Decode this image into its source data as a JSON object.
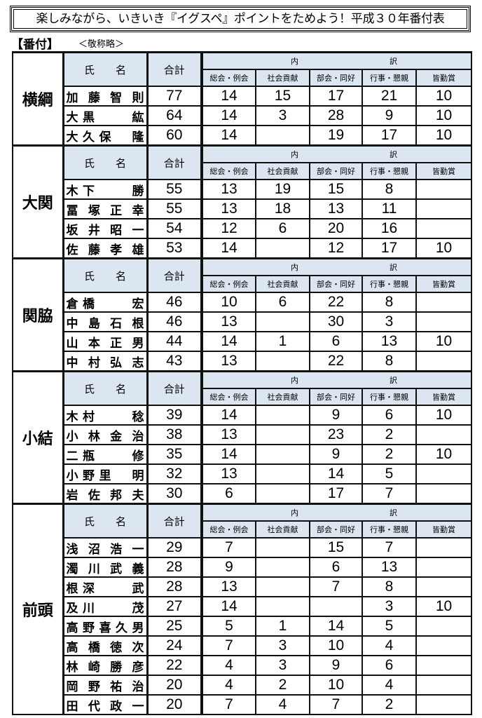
{
  "title": "楽しみながら、いきいき『イグスペ』ポイントをためよう！平成３０年番付表",
  "label": "【番付】",
  "note": "＜敬称略＞",
  "headers": {
    "name": "氏　　名",
    "total": "合計",
    "breakdown_left": "内",
    "breakdown_right": "訳",
    "columns": [
      "総会・例会",
      "社会貢献",
      "部会・同好",
      "行事・懇親",
      "皆勤賞"
    ]
  },
  "sections": [
    {
      "rank": "横綱",
      "rows": [
        {
          "name": "加藤智則",
          "total": "77",
          "values": [
            "14",
            "15",
            "17",
            "21",
            "10"
          ]
        },
        {
          "name": "大黒　　紘",
          "total": "64",
          "values": [
            "14",
            "3",
            "28",
            "9",
            "10"
          ]
        },
        {
          "name": "大久保　隆",
          "total": "60",
          "values": [
            "14",
            "",
            "19",
            "17",
            "10"
          ]
        }
      ]
    },
    {
      "rank": "大関",
      "rows": [
        {
          "name": "木下　　勝",
          "total": "55",
          "values": [
            "13",
            "19",
            "15",
            "8",
            ""
          ]
        },
        {
          "name": "冨塚正幸",
          "total": "55",
          "values": [
            "13",
            "18",
            "13",
            "11",
            ""
          ]
        },
        {
          "name": "坂井昭一",
          "total": "54",
          "values": [
            "12",
            "6",
            "20",
            "16",
            ""
          ]
        },
        {
          "name": "佐藤孝雄",
          "total": "53",
          "values": [
            "14",
            "",
            "12",
            "17",
            "10"
          ]
        }
      ]
    },
    {
      "rank": "関脇",
      "rows": [
        {
          "name": "倉橋　　宏",
          "total": "46",
          "values": [
            "10",
            "6",
            "22",
            "8",
            ""
          ]
        },
        {
          "name": "中島石根",
          "total": "46",
          "values": [
            "13",
            "",
            "30",
            "3",
            ""
          ]
        },
        {
          "name": "山本正男",
          "total": "44",
          "values": [
            "14",
            "1",
            "6",
            "13",
            "10"
          ]
        },
        {
          "name": "中村弘志",
          "total": "43",
          "values": [
            "13",
            "",
            "22",
            "8",
            ""
          ]
        }
      ]
    },
    {
      "rank": "小結",
      "rows": [
        {
          "name": "木村　　稔",
          "total": "39",
          "values": [
            "14",
            "",
            "9",
            "6",
            "10"
          ]
        },
        {
          "name": "小林金治",
          "total": "38",
          "values": [
            "13",
            "",
            "23",
            "2",
            ""
          ]
        },
        {
          "name": "二瓶　　修",
          "total": "35",
          "values": [
            "14",
            "",
            "9",
            "2",
            "10"
          ]
        },
        {
          "name": "小野里　明",
          "total": "32",
          "values": [
            "13",
            "",
            "14",
            "5",
            ""
          ]
        },
        {
          "name": "岩佐邦夫",
          "total": "30",
          "values": [
            "6",
            "",
            "17",
            "7",
            ""
          ]
        }
      ]
    },
    {
      "rank": "前頭",
      "rows": [
        {
          "name": "浅沼浩一",
          "total": "29",
          "values": [
            "7",
            "",
            "15",
            "7",
            ""
          ]
        },
        {
          "name": "濁川武義",
          "total": "28",
          "values": [
            "9",
            "",
            "6",
            "13",
            ""
          ]
        },
        {
          "name": "根深　　武",
          "total": "28",
          "values": [
            "13",
            "",
            "7",
            "8",
            ""
          ]
        },
        {
          "name": "及川　　茂",
          "total": "27",
          "values": [
            "14",
            "",
            "",
            "3",
            "10"
          ]
        },
        {
          "name": "高野喜久男",
          "total": "25",
          "values": [
            "5",
            "1",
            "14",
            "5",
            ""
          ]
        },
        {
          "name": "高橋徳次",
          "total": "24",
          "values": [
            "7",
            "3",
            "10",
            "4",
            ""
          ]
        },
        {
          "name": "林崎勝彦",
          "total": "22",
          "values": [
            "4",
            "3",
            "9",
            "6",
            ""
          ]
        },
        {
          "name": "岡野祐治",
          "total": "20",
          "values": [
            "4",
            "2",
            "10",
            "4",
            ""
          ]
        },
        {
          "name": "田代政一",
          "total": "20",
          "values": [
            "7",
            "4",
            "7",
            "2",
            ""
          ]
        }
      ]
    }
  ]
}
